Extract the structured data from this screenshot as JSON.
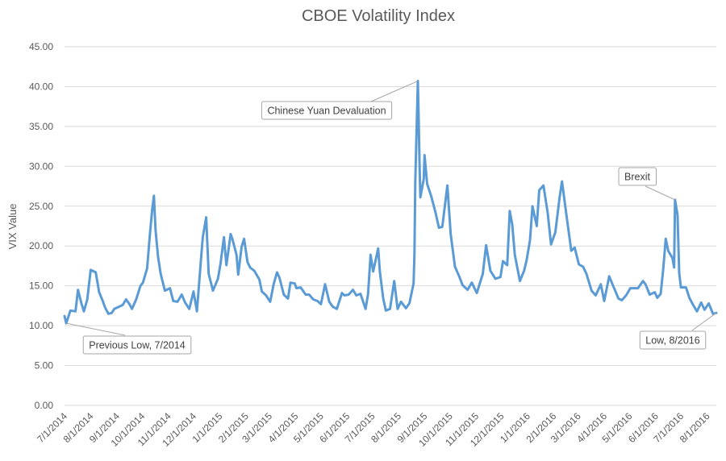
{
  "chart_data": {
    "type": "line",
    "title": "CBOE Volatility Index",
    "xlabel": "",
    "ylabel": "VIX Value",
    "ylim": [
      0,
      45
    ],
    "yticks": [
      "0.00",
      "5.00",
      "10.00",
      "15.00",
      "20.00",
      "25.00",
      "30.00",
      "35.00",
      "40.00",
      "45.00"
    ],
    "grid": true,
    "x_tick_labels": [
      "7/1/2014",
      "8/1/2014",
      "9/1/2014",
      "10/1/2014",
      "11/1/2014",
      "12/1/2014",
      "1/1/2015",
      "2/1/2015",
      "3/1/2015",
      "4/1/2015",
      "5/1/2015",
      "6/1/2015",
      "7/1/2015",
      "8/1/2015",
      "9/1/2015",
      "10/1/2015",
      "11/1/2015",
      "12/1/2015",
      "1/1/2016",
      "2/1/2016",
      "3/1/2016",
      "4/1/2016",
      "5/1/2016",
      "6/1/2016",
      "7/1/2016",
      "8/1/2016"
    ],
    "series": [
      {
        "name": "",
        "color": "#5b9bd5",
        "points": [
          [
            "7/1/2014",
            11.2
          ],
          [
            "7/3/2014",
            10.3
          ],
          [
            "7/8/2014",
            11.9
          ],
          [
            "7/14/2014",
            11.8
          ],
          [
            "7/17/2014",
            14.5
          ],
          [
            "7/21/2014",
            12.8
          ],
          [
            "7/24/2014",
            11.8
          ],
          [
            "7/28/2014",
            13.3
          ],
          [
            "8/1/2014",
            17.0
          ],
          [
            "8/7/2014",
            16.7
          ],
          [
            "8/11/2014",
            14.2
          ],
          [
            "8/15/2014",
            13.2
          ],
          [
            "8/18/2014",
            12.3
          ],
          [
            "8/22/2014",
            11.5
          ],
          [
            "8/26/2014",
            11.6
          ],
          [
            "8/29/2014",
            12.1
          ],
          [
            "9/2/2014",
            12.3
          ],
          [
            "9/8/2014",
            12.6
          ],
          [
            "9/12/2014",
            13.3
          ],
          [
            "9/16/2014",
            12.7
          ],
          [
            "9/19/2014",
            12.1
          ],
          [
            "9/24/2014",
            13.3
          ],
          [
            "9/29/2014",
            15.0
          ],
          [
            "10/2/2014",
            15.4
          ],
          [
            "10/7/2014",
            17.2
          ],
          [
            "10/10/2014",
            21.2
          ],
          [
            "10/13/2014",
            24.6
          ],
          [
            "10/15/2014",
            26.3
          ],
          [
            "10/17/2014",
            21.9
          ],
          [
            "10/20/2014",
            18.6
          ],
          [
            "10/23/2014",
            16.5
          ],
          [
            "10/28/2014",
            14.4
          ],
          [
            "11/3/2014",
            14.7
          ],
          [
            "11/7/2014",
            13.1
          ],
          [
            "11/12/2014",
            13.0
          ],
          [
            "11/17/2014",
            13.9
          ],
          [
            "11/21/2014",
            12.9
          ],
          [
            "11/26/2014",
            12.1
          ],
          [
            "12/1/2014",
            14.3
          ],
          [
            "12/5/2014",
            11.8
          ],
          [
            "12/10/2014",
            18.5
          ],
          [
            "12/12/2014",
            21.1
          ],
          [
            "12/16/2014",
            23.6
          ],
          [
            "12/19/2014",
            16.5
          ],
          [
            "12/24/2014",
            14.4
          ],
          [
            "12/30/2014",
            15.9
          ],
          [
            "1/2/2015",
            17.8
          ],
          [
            "1/6/2015",
            21.1
          ],
          [
            "1/9/2015",
            17.6
          ],
          [
            "1/14/2015",
            21.5
          ],
          [
            "1/16/2015",
            20.9
          ],
          [
            "1/21/2015",
            18.9
          ],
          [
            "1/23/2015",
            16.4
          ],
          [
            "1/27/2015",
            19.9
          ],
          [
            "1/30/2015",
            20.9
          ],
          [
            "2/3/2015",
            18.0
          ],
          [
            "2/6/2015",
            17.3
          ],
          [
            "2/11/2015",
            16.9
          ],
          [
            "2/17/2015",
            15.8
          ],
          [
            "2/20/2015",
            14.3
          ],
          [
            "2/25/2015",
            13.8
          ],
          [
            "3/2/2015",
            13.0
          ],
          [
            "3/6/2015",
            15.2
          ],
          [
            "3/10/2015",
            16.7
          ],
          [
            "3/13/2015",
            16.0
          ],
          [
            "3/18/2015",
            13.9
          ],
          [
            "3/23/2015",
            13.4
          ],
          [
            "3/26/2015",
            15.4
          ],
          [
            "3/31/2015",
            15.3
          ],
          [
            "4/2/2015",
            14.7
          ],
          [
            "4/7/2015",
            14.8
          ],
          [
            "4/13/2015",
            13.9
          ],
          [
            "4/17/2015",
            13.9
          ],
          [
            "4/22/2015",
            13.3
          ],
          [
            "4/27/2015",
            13.1
          ],
          [
            "5/1/2015",
            12.7
          ],
          [
            "5/6/2015",
            15.2
          ],
          [
            "5/11/2015",
            13.0
          ],
          [
            "5/15/2015",
            12.4
          ],
          [
            "5/20/2015",
            12.1
          ],
          [
            "5/26/2015",
            14.1
          ],
          [
            "5/29/2015",
            13.8
          ],
          [
            "6/3/2015",
            13.9
          ],
          [
            "6/8/2015",
            14.5
          ],
          [
            "6/12/2015",
            13.8
          ],
          [
            "6/17/2015",
            14.0
          ],
          [
            "6/23/2015",
            12.1
          ],
          [
            "6/26/2015",
            14.0
          ],
          [
            "6/29/2015",
            18.9
          ],
          [
            "7/2/2015",
            16.8
          ],
          [
            "7/8/2015",
            19.7
          ],
          [
            "7/10/2015",
            16.8
          ],
          [
            "7/14/2015",
            13.4
          ],
          [
            "7/17/2015",
            11.9
          ],
          [
            "7/22/2015",
            12.1
          ],
          [
            "7/27/2015",
            15.6
          ],
          [
            "7/31/2015",
            12.1
          ],
          [
            "8/4/2015",
            13.0
          ],
          [
            "8/10/2015",
            12.2
          ],
          [
            "8/14/2015",
            12.8
          ],
          [
            "8/19/2015",
            15.3
          ],
          [
            "8/20/2015",
            19.1
          ],
          [
            "8/21/2015",
            28.0
          ],
          [
            "8/24/2015",
            40.7
          ],
          [
            "8/25/2015",
            36.0
          ],
          [
            "8/26/2015",
            30.3
          ],
          [
            "8/27/2015",
            26.1
          ],
          [
            "8/31/2015",
            28.4
          ],
          [
            "9/1/2015",
            31.4
          ],
          [
            "9/4/2015",
            27.8
          ],
          [
            "9/9/2015",
            26.2
          ],
          [
            "9/14/2015",
            24.2
          ],
          [
            "9/18/2015",
            22.3
          ],
          [
            "9/22/2015",
            22.4
          ],
          [
            "9/28/2015",
            27.6
          ],
          [
            "10/2/2015",
            21.5
          ],
          [
            "10/7/2015",
            17.4
          ],
          [
            "10/12/2015",
            16.2
          ],
          [
            "10/16/2015",
            15.1
          ],
          [
            "10/22/2015",
            14.5
          ],
          [
            "10/27/2015",
            15.4
          ],
          [
            "11/2/2015",
            14.1
          ],
          [
            "11/9/2015",
            16.5
          ],
          [
            "11/13/2015",
            20.1
          ],
          [
            "11/18/2015",
            16.9
          ],
          [
            "11/24/2015",
            15.9
          ],
          [
            "11/30/2015",
            16.1
          ],
          [
            "12/3/2015",
            18.1
          ],
          [
            "12/8/2015",
            17.6
          ],
          [
            "12/11/2015",
            24.4
          ],
          [
            "12/14/2015",
            22.7
          ],
          [
            "12/17/2015",
            18.9
          ],
          [
            "12/23/2015",
            15.6
          ],
          [
            "12/28/2015",
            16.9
          ],
          [
            "12/31/2015",
            18.2
          ],
          [
            "1/4/2016",
            20.7
          ],
          [
            "1/7/2016",
            24.99
          ],
          [
            "1/12/2016",
            22.5
          ],
          [
            "1/15/2016",
            27.0
          ],
          [
            "1/20/2016",
            27.6
          ],
          [
            "1/25/2016",
            24.2
          ],
          [
            "1/29/2016",
            20.2
          ],
          [
            "2/3/2016",
            21.7
          ],
          [
            "2/8/2016",
            26.0
          ],
          [
            "2/11/2016",
            28.1
          ],
          [
            "2/16/2016",
            24.1
          ],
          [
            "2/22/2016",
            19.4
          ],
          [
            "2/26/2016",
            19.8
          ],
          [
            "3/2/2016",
            17.7
          ],
          [
            "3/7/2016",
            17.4
          ],
          [
            "3/11/2016",
            16.5
          ],
          [
            "3/17/2016",
            14.4
          ],
          [
            "3/22/2016",
            13.8
          ],
          [
            "3/28/2016",
            15.2
          ],
          [
            "4/1/2016",
            13.1
          ],
          [
            "4/7/2016",
            16.2
          ],
          [
            "4/12/2016",
            14.9
          ],
          [
            "4/18/2016",
            13.4
          ],
          [
            "4/22/2016",
            13.2
          ],
          [
            "4/27/2016",
            13.8
          ],
          [
            "5/2/2016",
            14.7
          ],
          [
            "5/6/2016",
            14.7
          ],
          [
            "5/11/2016",
            14.7
          ],
          [
            "5/17/2016",
            15.6
          ],
          [
            "5/20/2016",
            15.2
          ],
          [
            "5/25/2016",
            13.9
          ],
          [
            "5/31/2016",
            14.2
          ],
          [
            "6/3/2016",
            13.5
          ],
          [
            "6/7/2016",
            14.0
          ],
          [
            "6/10/2016",
            17.0
          ],
          [
            "6/13/2016",
            20.9
          ],
          [
            "6/16/2016",
            19.4
          ],
          [
            "6/21/2016",
            18.5
          ],
          [
            "6/23/2016",
            17.3
          ],
          [
            "6/24/2016",
            25.8
          ],
          [
            "6/27/2016",
            23.9
          ],
          [
            "6/29/2016",
            16.6
          ],
          [
            "7/1/2016",
            14.8
          ],
          [
            "7/7/2016",
            14.8
          ],
          [
            "7/11/2016",
            13.5
          ],
          [
            "7/15/2016",
            12.7
          ],
          [
            "7/20/2016",
            11.8
          ],
          [
            "7/25/2016",
            12.9
          ],
          [
            "7/29/2016",
            12.0
          ],
          [
            "8/3/2016",
            12.8
          ],
          [
            "8/8/2016",
            11.5
          ],
          [
            "8/12/2016",
            11.6
          ]
        ]
      }
    ],
    "annotations": [
      {
        "text": "Previous Low, 7/2014",
        "target": [
          "7/3/2014",
          10.3
        ]
      },
      {
        "text": "Chinese Yuan Devaluation",
        "target": [
          "8/24/2015",
          40.7
        ]
      },
      {
        "text": "Brexit",
        "target": [
          "6/24/2016",
          25.8
        ]
      },
      {
        "text": "Low, 8/2016",
        "target": [
          "8/12/2016",
          11.6
        ]
      }
    ]
  }
}
